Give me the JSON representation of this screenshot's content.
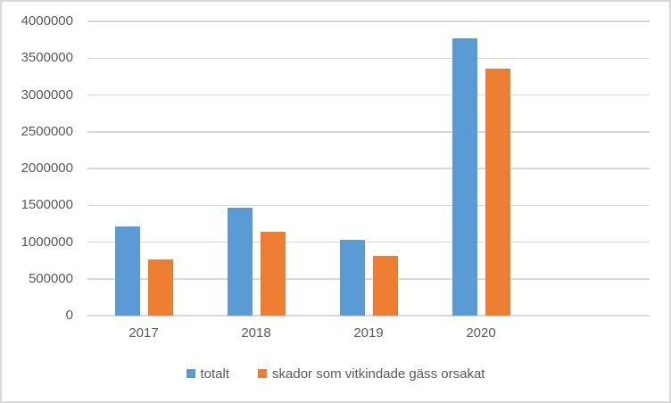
{
  "chart_data": {
    "type": "bar",
    "title": "",
    "xlabel": "",
    "ylabel": "",
    "categories": [
      "2017",
      "2018",
      "2019",
      "2020"
    ],
    "series": [
      {
        "name": "totalt",
        "color": "#5B9BD5",
        "values": [
          1210000,
          1470000,
          1030000,
          3770000
        ]
      },
      {
        "name": "skador som vitkindade gäss orsakat",
        "color": "#ED7D31",
        "values": [
          760000,
          1140000,
          810000,
          3360000
        ]
      }
    ],
    "ylim": [
      0,
      4000000
    ],
    "ytick_step": 500000,
    "ytick_labels": [
      "0",
      "500000",
      "1000000",
      "1500000",
      "2000000",
      "2500000",
      "3000000",
      "3500000",
      "4000000"
    ],
    "grid": true,
    "legend_position": "bottom",
    "colors": {
      "gridline": "#D9D9D9",
      "axis_line": "#D9D9D9",
      "axis_text": "#595959",
      "border": "#D9D9D9",
      "background": "#FFFFFF"
    }
  }
}
